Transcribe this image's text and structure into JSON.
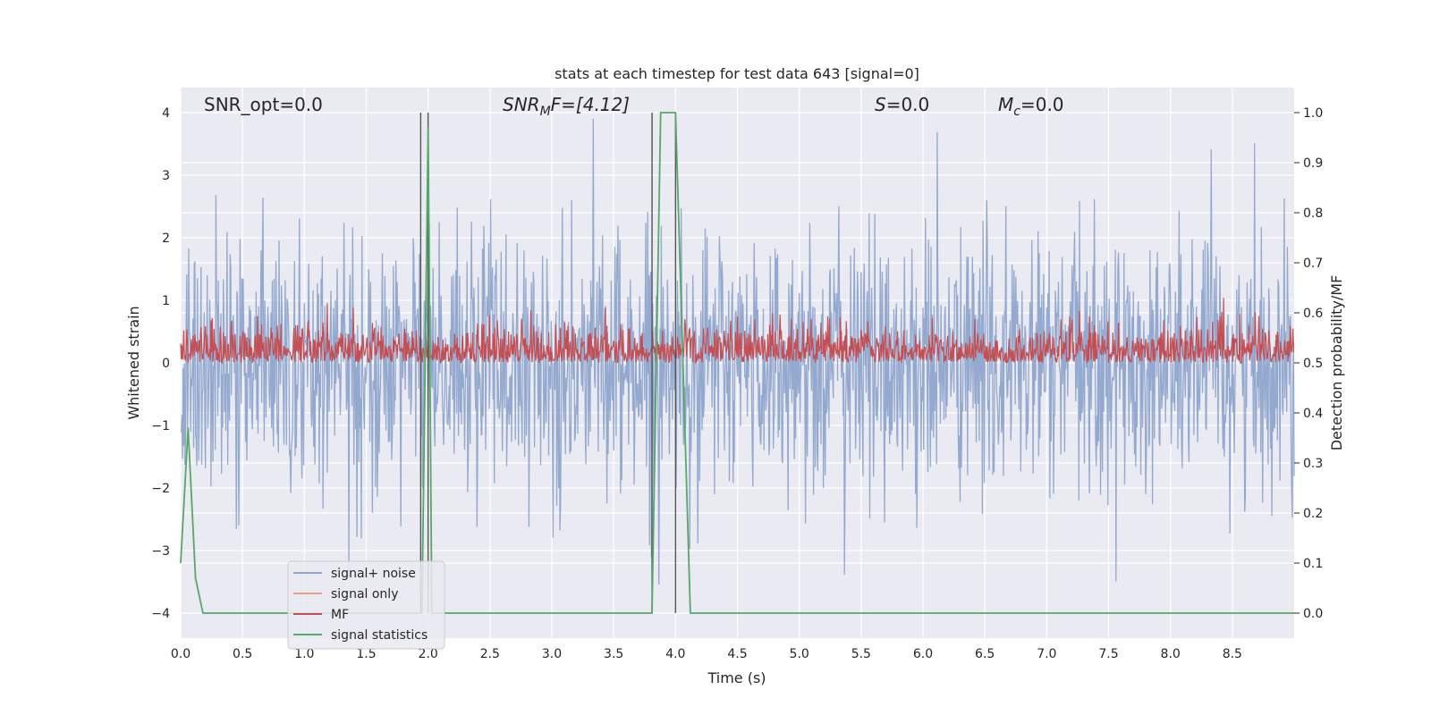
{
  "chart_data": {
    "type": "line",
    "title": "stats at each timestep for test data 643 [signal=0]",
    "xlabel": "Time (s)",
    "ylabel": "Whitened strain",
    "y2label": "Detection probability/MF",
    "xlim": [
      0.0,
      9.0
    ],
    "ylim": [
      -4.4,
      4.4
    ],
    "y2lim": [
      -0.05,
      1.05
    ],
    "xticks": [
      "0.0",
      "0.5",
      "1.0",
      "1.5",
      "2.0",
      "2.5",
      "3.0",
      "3.5",
      "4.0",
      "4.5",
      "5.0",
      "5.5",
      "6.0",
      "6.5",
      "7.0",
      "7.5",
      "8.0",
      "8.5"
    ],
    "xtick_values": [
      0.0,
      0.5,
      1.0,
      1.5,
      2.0,
      2.5,
      3.0,
      3.5,
      4.0,
      4.5,
      5.0,
      5.5,
      6.0,
      6.5,
      7.0,
      7.5,
      8.0,
      8.5
    ],
    "yticks": [
      "−4",
      "−3",
      "−2",
      "−1",
      "0",
      "1",
      "2",
      "3",
      "4"
    ],
    "ytick_values": [
      -4,
      -3,
      -2,
      -1,
      0,
      1,
      2,
      3,
      4
    ],
    "y2ticks": [
      "0.0",
      "0.1",
      "0.2",
      "0.3",
      "0.4",
      "0.5",
      "0.6",
      "0.7",
      "0.8",
      "0.9",
      "1.0"
    ],
    "y2tick_values": [
      0.0,
      0.1,
      0.2,
      0.3,
      0.4,
      0.5,
      0.6,
      0.7,
      0.8,
      0.9,
      1.0
    ],
    "grid": true,
    "legend_position": "lower-left",
    "annotations": {
      "snr_opt": "SNR_opt=0.0",
      "snr_mf_main": "SNR",
      "snr_mf_sub": "M",
      "snr_mf_rest": "F=[4.12]",
      "s_italic": "S",
      "s_rest": "=0.0",
      "mc_italic": "M",
      "mc_sub": "c",
      "mc_rest": "=0.0"
    },
    "series": [
      {
        "name": "signal+ noise",
        "color": "#8fa5cc",
        "description_values": {
          "approx_range": [
            -3.7,
            3.9
          ],
          "noise_sigma": 1.0,
          "samples_per_second": 200
        }
      },
      {
        "name": "signal only",
        "color": "#e8a08a",
        "values": []
      },
      {
        "name": "MF",
        "color": "#c44e52",
        "description_values": {
          "approx_range": [
            0.5,
            0.63
          ],
          "axis": "right"
        }
      },
      {
        "name": "signal statistics",
        "color": "#55a868",
        "axis": "right",
        "x": [
          0.0,
          0.06,
          0.12,
          0.18,
          1.92,
          1.95,
          2.0,
          2.03,
          3.81,
          3.88,
          4.0,
          4.12,
          9.0
        ],
        "values": [
          0.1,
          0.37,
          0.07,
          0.0,
          0.0,
          0.0,
          0.97,
          0.0,
          0.0,
          1.0,
          1.0,
          0.0,
          0.0
        ]
      }
    ],
    "vertical_lines": [
      1.94,
      2.0,
      3.81,
      4.0
    ],
    "vertical_lines_color": "#555555"
  }
}
